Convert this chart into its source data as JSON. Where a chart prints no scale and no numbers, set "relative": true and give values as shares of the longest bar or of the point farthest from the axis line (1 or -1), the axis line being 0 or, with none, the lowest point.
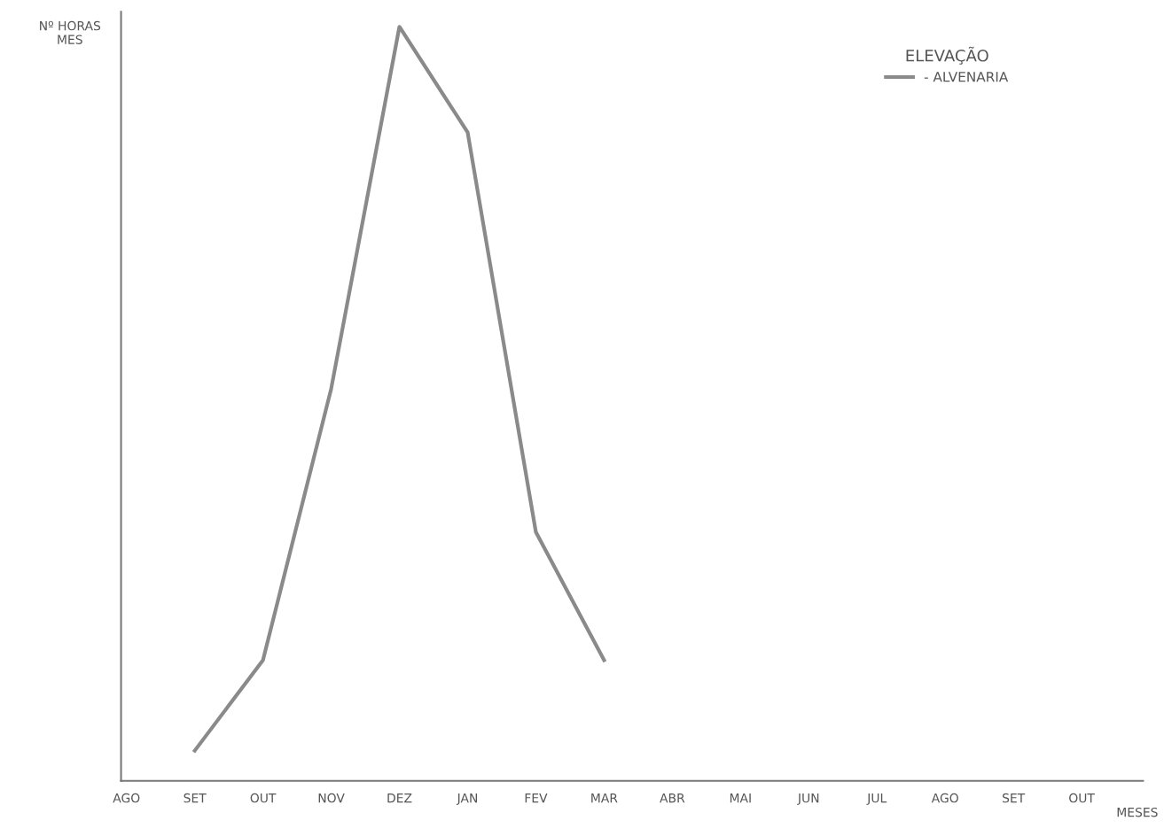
{
  "chart_data": {
    "type": "line",
    "relative": true,
    "ylabel": "Nº HORAS\nMES",
    "xlabel": "MESES",
    "legend_title": "ELEVAÇÃO",
    "legend": "top right",
    "grid": false,
    "tick_labels": "x",
    "categories": [
      "AGO",
      "SET",
      "OUT",
      "NOV",
      "DEZ",
      "JAN",
      "FEV",
      "MAR",
      "ABR",
      "MAI",
      "JUN",
      "JUL",
      "AGO",
      "SET",
      "OUT"
    ],
    "series": [
      {
        "name": "- ALVENARIA",
        "color": "#8a8a8a",
        "values": [
          null,
          0.04,
          0.16,
          0.52,
          1,
          0.86,
          0.33,
          0.16,
          null,
          null,
          null,
          null,
          null,
          null,
          null
        ]
      }
    ]
  }
}
